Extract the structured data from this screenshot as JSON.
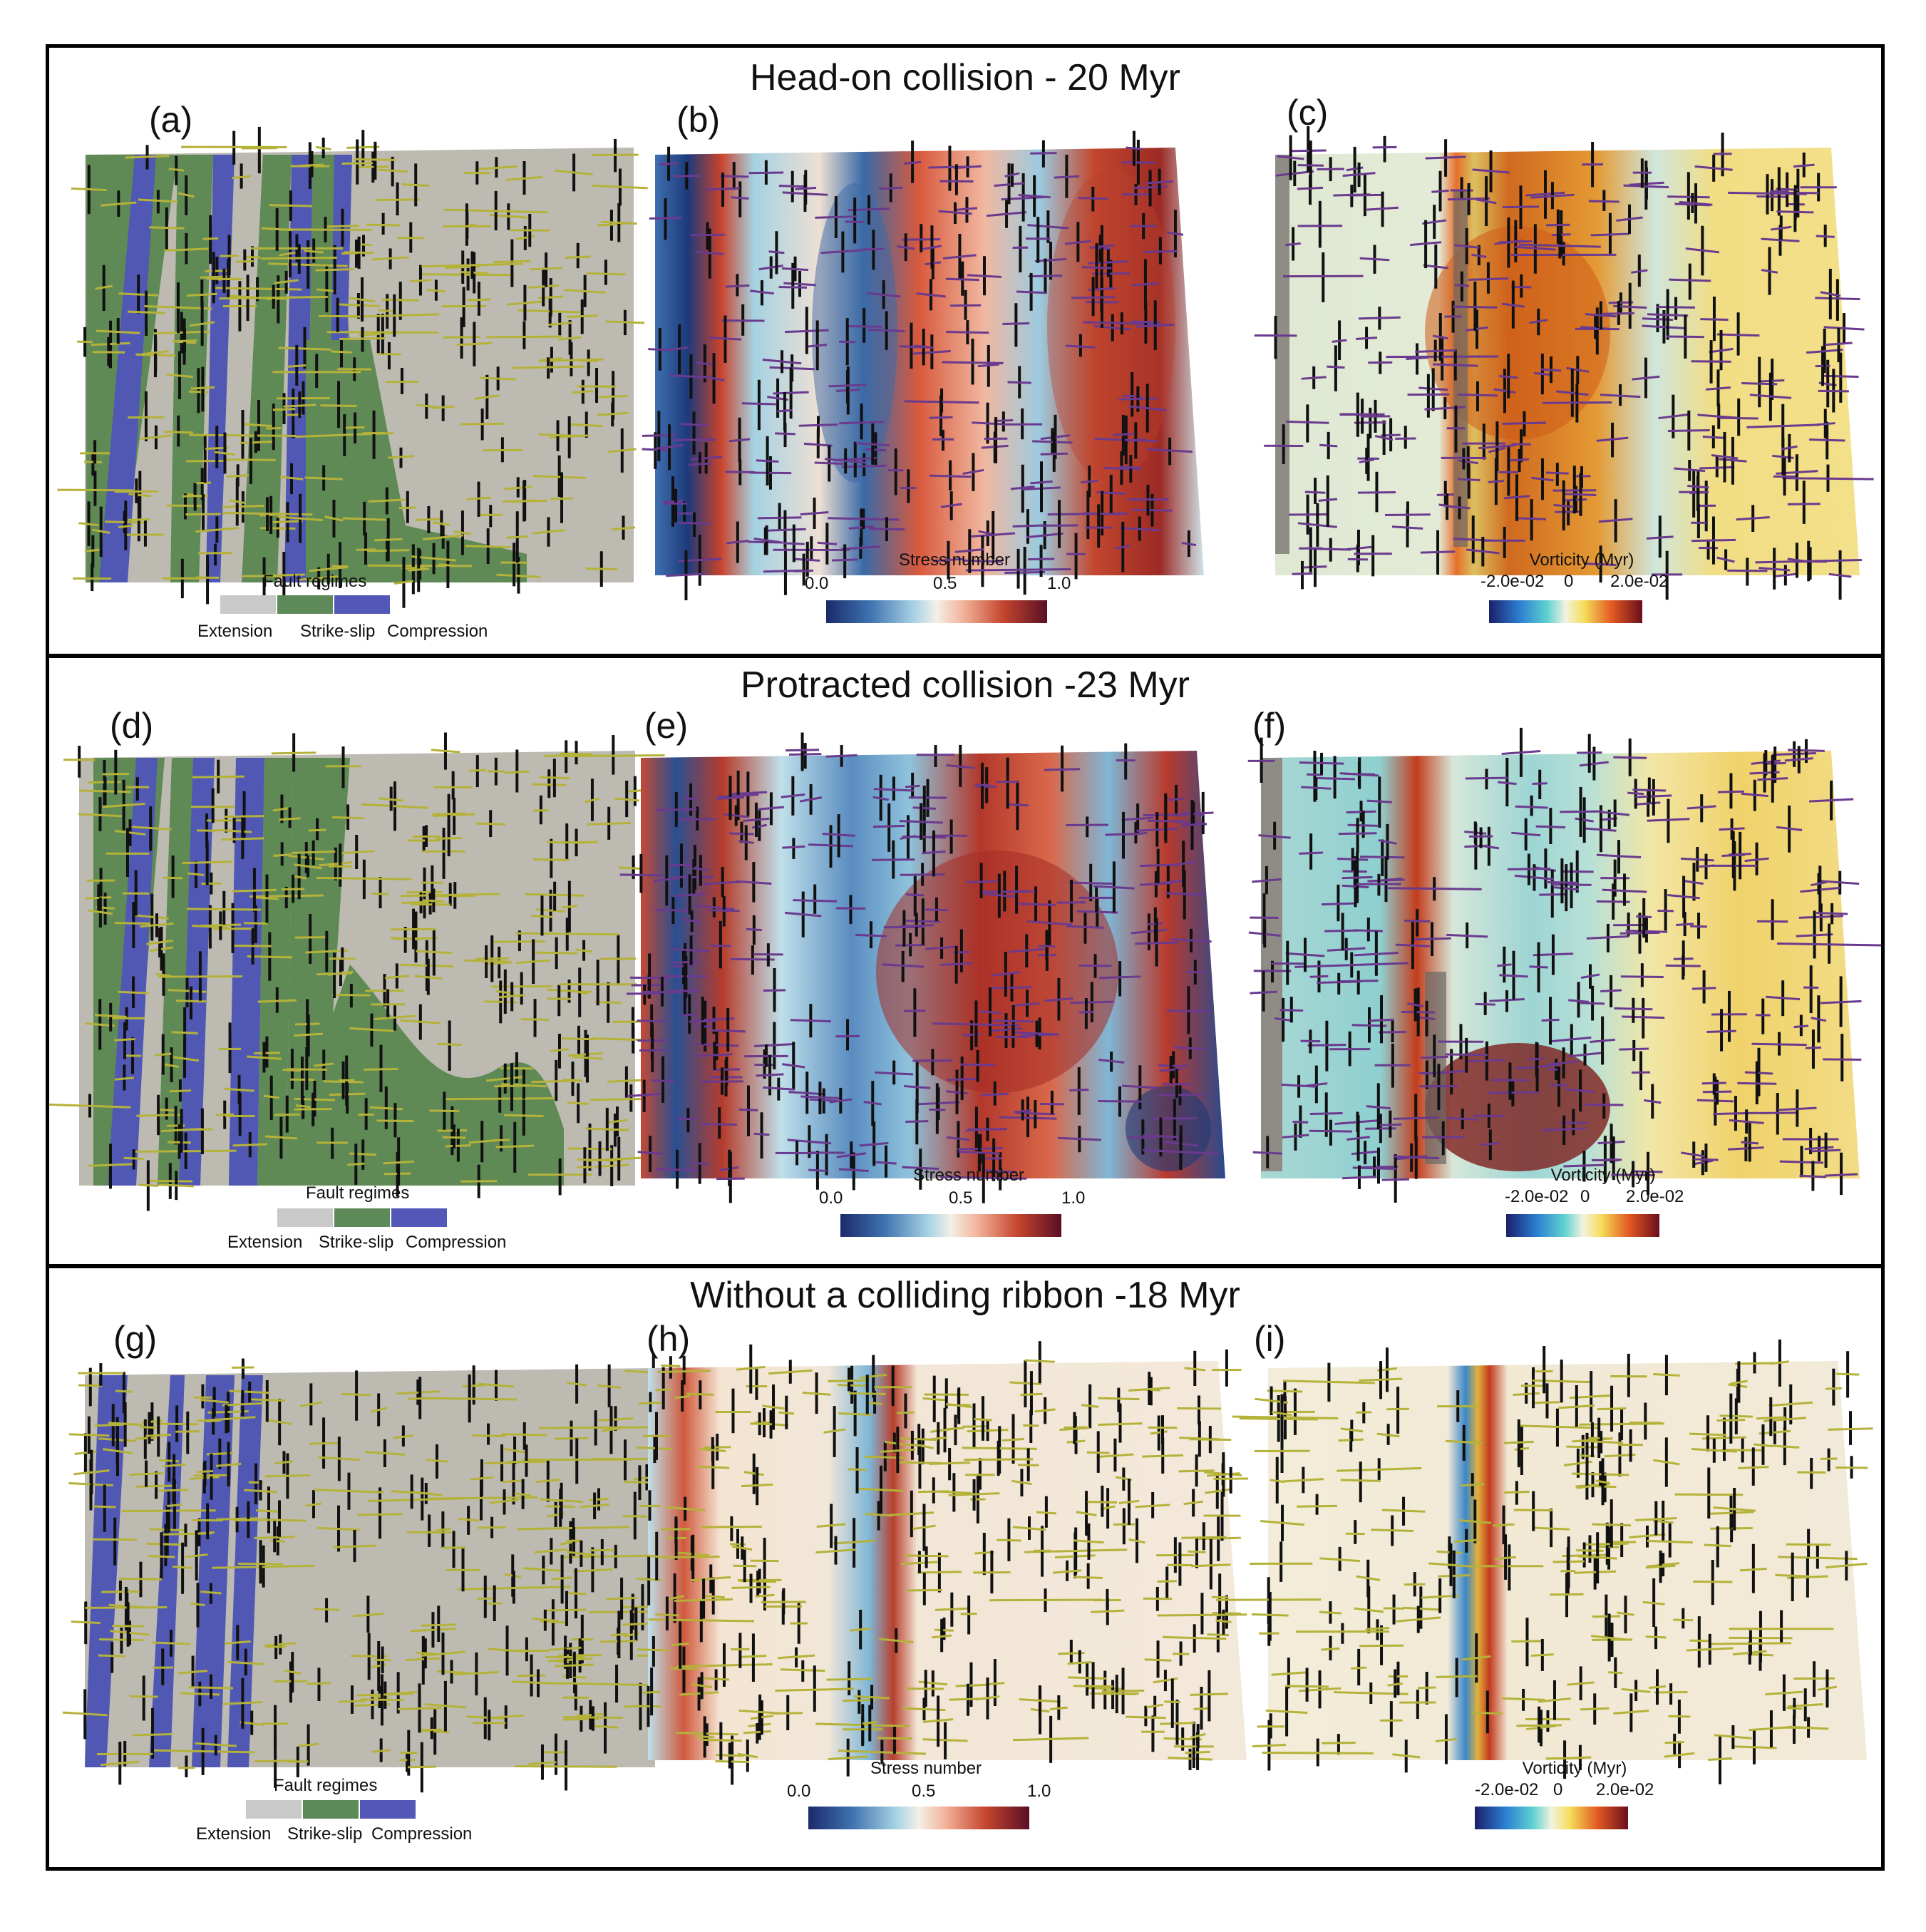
{
  "rows": [
    {
      "title": "Head-on collision - 20 Myr",
      "panels": [
        "(a)",
        "(b)",
        "(c)"
      ]
    },
    {
      "title": "Protracted collision -23 Myr",
      "panels": [
        "(d)",
        "(e)",
        "(f)"
      ]
    },
    {
      "title": "Without a colliding ribbon -18 Myr",
      "panels": [
        "(g)",
        "(h)",
        "(i)"
      ]
    }
  ],
  "fault_legend": {
    "title": "Fault regimes",
    "labels": [
      "Extension",
      "Strike-slip",
      "Compression"
    ],
    "colors": [
      "#c9c9c9",
      "#5e8a5a",
      "#5358b8"
    ]
  },
  "stress_legend": {
    "title": "Stress number",
    "ticks": [
      "0.0",
      "0.5",
      "1.0"
    ]
  },
  "vorticity_legend": {
    "title": "Vorticity (Myr)",
    "ticks": [
      "-2.0e-02",
      "0",
      "2.0e-02"
    ]
  },
  "colors": {
    "extension": "#bdbab1",
    "strike_slip": "#5f8a56",
    "compression": "#5158b4",
    "stick_black": "#111111",
    "stick_yellow": "#b5b23a",
    "stick_purple": "#6a3a8e"
  }
}
